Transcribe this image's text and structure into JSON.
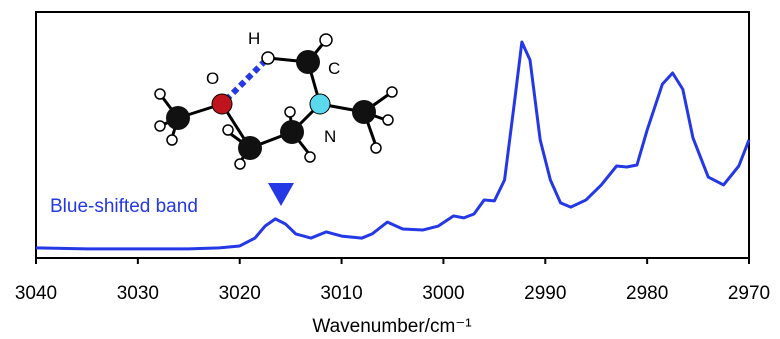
{
  "chart_data": {
    "type": "line",
    "x_label": "Wavenumber/cm⁻¹",
    "annotation": "Blue-shifted band",
    "molecule_labels": [
      "H",
      "O",
      "C",
      "N"
    ],
    "xlim": [
      3040,
      2970
    ],
    "xticks": [
      3040,
      3030,
      3020,
      3010,
      3000,
      2990,
      2980,
      2970
    ],
    "ylim": [
      0,
      1
    ],
    "color": "#2438e6",
    "x": [
      3040,
      3035,
      3030,
      3025,
      3022,
      3020,
      3018.5,
      3017.5,
      3016.5,
      3015.5,
      3014.5,
      3013,
      3011.5,
      3010,
      3008,
      3007,
      3005.5,
      3004,
      3002,
      3000.5,
      2999,
      2998,
      2997,
      2996,
      2995,
      2994,
      2993,
      2992.3,
      2991.5,
      2990.5,
      2989.5,
      2988.5,
      2987.5,
      2986,
      2984.5,
      2983,
      2982,
      2981,
      2980,
      2978.5,
      2977.5,
      2976.5,
      2975.5,
      2974,
      2972.5,
      2971,
      2970
    ],
    "values": [
      0.041,
      0.037,
      0.037,
      0.037,
      0.041,
      0.049,
      0.081,
      0.13,
      0.159,
      0.138,
      0.098,
      0.081,
      0.106,
      0.089,
      0.081,
      0.098,
      0.146,
      0.118,
      0.114,
      0.13,
      0.171,
      0.163,
      0.179,
      0.236,
      0.232,
      0.317,
      0.642,
      0.878,
      0.805,
      0.48,
      0.317,
      0.224,
      0.207,
      0.236,
      0.297,
      0.374,
      0.37,
      0.378,
      0.52,
      0.707,
      0.752,
      0.686,
      0.488,
      0.329,
      0.297,
      0.374,
      0.48
    ]
  }
}
